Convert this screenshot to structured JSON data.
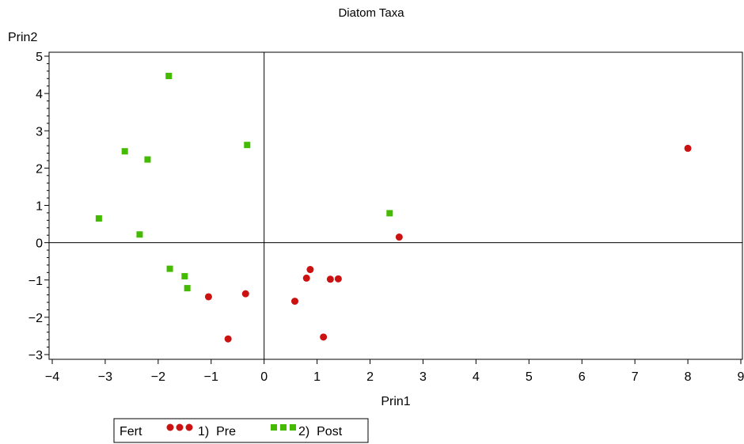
{
  "chart_data": {
    "type": "scatter",
    "title": "Diatom Taxa",
    "xlabel": "Prin1",
    "ylabel": "Prin2",
    "xlim": [
      -4,
      9
    ],
    "ylim": [
      -3,
      5
    ],
    "xticks": [
      -4,
      -3,
      -2,
      -1,
      0,
      1,
      2,
      3,
      4,
      5,
      6,
      7,
      8,
      9
    ],
    "yticks": [
      -3,
      -2,
      -1,
      0,
      1,
      2,
      3,
      4,
      5
    ],
    "xtick_labels": [
      "−4",
      "−3",
      "−2",
      "−1",
      "0",
      "1",
      "2",
      "3",
      "4",
      "5",
      "6",
      "7",
      "8",
      "9"
    ],
    "ytick_labels": [
      "−3",
      "−2",
      "−1",
      "0",
      "1",
      "2",
      "3",
      "4",
      "5"
    ],
    "reference_lines": {
      "x": 0,
      "y": 0
    },
    "grid": false,
    "legend": {
      "placement": "bottom-left",
      "title": "Fert",
      "entries": [
        "1)  Pre",
        "2)  Post"
      ]
    },
    "series": [
      {
        "name": "1)  Pre",
        "marker": "circle",
        "color": "#cc1111",
        "points": [
          [
            8.0,
            2.53
          ],
          [
            2.55,
            0.15
          ],
          [
            -1.05,
            -1.45
          ],
          [
            -0.35,
            -1.37
          ],
          [
            -0.68,
            -2.58
          ],
          [
            0.58,
            -1.57
          ],
          [
            0.8,
            -0.95
          ],
          [
            0.87,
            -0.72
          ],
          [
            1.25,
            -0.98
          ],
          [
            1.4,
            -0.97
          ],
          [
            1.12,
            -2.53
          ]
        ]
      },
      {
        "name": "2)  Post",
        "marker": "square",
        "color": "#44bb00",
        "points": [
          [
            -1.8,
            4.47
          ],
          [
            -2.63,
            2.45
          ],
          [
            -2.2,
            2.23
          ],
          [
            -0.32,
            2.62
          ],
          [
            -3.12,
            0.65
          ],
          [
            -2.35,
            0.22
          ],
          [
            2.37,
            0.79
          ],
          [
            -1.78,
            -0.7
          ],
          [
            -1.5,
            -0.9
          ],
          [
            -1.45,
            -1.22
          ]
        ]
      }
    ]
  }
}
